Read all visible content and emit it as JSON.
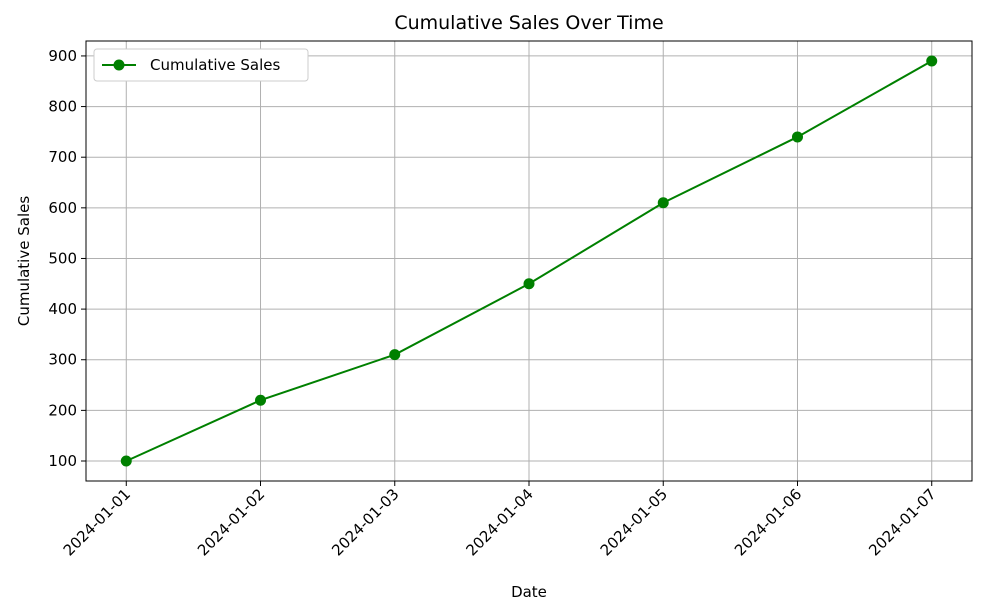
{
  "chart_data": {
    "type": "line",
    "title": "Cumulative Sales Over Time",
    "x_label": "Date",
    "y_label": "Cumulative Sales",
    "categories": [
      "2024-01-01",
      "2024-01-02",
      "2024-01-03",
      "2024-01-04",
      "2024-01-05",
      "2024-01-06",
      "2024-01-07"
    ],
    "series": [
      {
        "name": "Cumulative Sales",
        "color": "green",
        "values": [
          100,
          220,
          310,
          450,
          610,
          740,
          890
        ]
      }
    ],
    "ylim": [
      60.5,
      929.5
    ],
    "yticks": [
      100,
      200,
      300,
      400,
      500,
      600,
      700,
      800,
      900
    ],
    "grid": true,
    "legend": "upper left"
  }
}
